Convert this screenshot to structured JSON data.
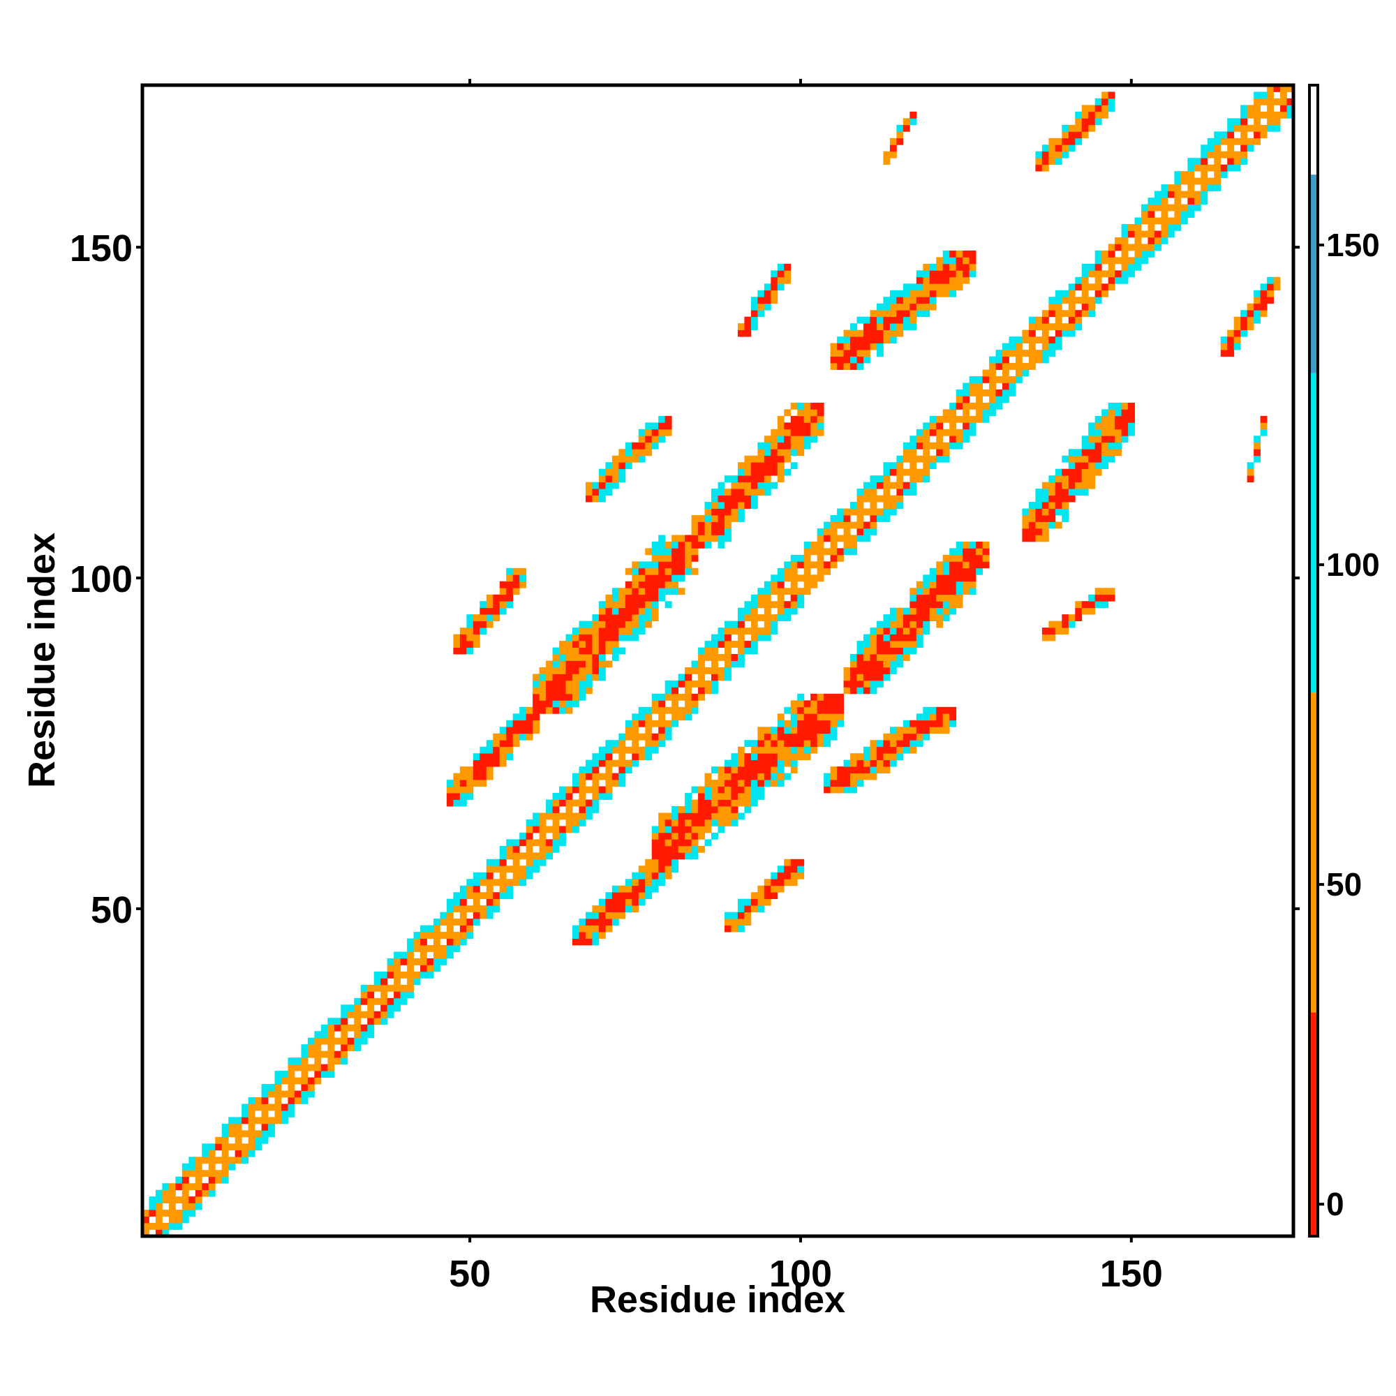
{
  "chart_data": {
    "type": "heatmap",
    "title": "",
    "xlabel": "Residue index",
    "ylabel": "Residue index",
    "xlim": [
      1,
      174
    ],
    "ylim": [
      1,
      174
    ],
    "x_ticks": [
      50,
      100,
      150
    ],
    "y_ticks": [
      50,
      100,
      150
    ],
    "grid": false,
    "colorbar": {
      "position": "right",
      "range": [
        -5,
        175
      ],
      "ticks": [
        0,
        50,
        100,
        150
      ],
      "bands": [
        {
          "from": -5,
          "to": 30,
          "color": "#ff1e00"
        },
        {
          "from": 30,
          "to": 80,
          "color": "#ff9900"
        },
        {
          "from": 80,
          "to": 161,
          "color": "#00e5ee"
        },
        {
          "from": 161,
          "to": 175,
          "color": "#ffffff"
        }
      ]
    },
    "colors": {
      "red": "#ff1a00",
      "orange": "#ff9900",
      "cyan": "#00e5ee",
      "steel": "#4a8fc0",
      "axis": "#000000"
    },
    "cells_note": "",
    "diagonal_band": {
      "from": 1,
      "to": 174,
      "halfwidth": 4
    },
    "contact_regions": [
      {
        "x": [
          66,
          81
        ],
        "y": [
          45,
          58
        ],
        "color": "red"
      },
      {
        "x": [
          89,
          100
        ],
        "y": [
          47,
          57
        ],
        "color": "red"
      },
      {
        "x": [
          78,
          106
        ],
        "y": [
          58,
          82
        ],
        "color": "red"
      },
      {
        "x": [
          104,
          123
        ],
        "y": [
          68,
          80
        ],
        "color": "red"
      },
      {
        "x": [
          107,
          128
        ],
        "y": [
          83,
          105
        ],
        "color": "red"
      },
      {
        "x": [
          137,
          147
        ],
        "y": [
          91,
          98
        ],
        "color": "red"
      },
      {
        "x": [
          134,
          150
        ],
        "y": [
          106,
          126
        ],
        "color": "red"
      },
      {
        "x": [
          47,
          60
        ],
        "y": [
          66,
          80
        ],
        "color": "red"
      },
      {
        "x": [
          60,
          84
        ],
        "y": [
          80,
          106
        ],
        "color": "red"
      },
      {
        "x": [
          48,
          58
        ],
        "y": [
          89,
          101
        ],
        "color": "red"
      },
      {
        "x": [
          84,
          103
        ],
        "y": [
          105,
          126
        ],
        "color": "red"
      },
      {
        "x": [
          68,
          80
        ],
        "y": [
          112,
          124
        ],
        "color": "red"
      },
      {
        "x": [
          105,
          126
        ],
        "y": [
          132,
          149
        ],
        "color": "red"
      },
      {
        "x": [
          91,
          98
        ],
        "y": [
          137,
          147
        ],
        "color": "red"
      },
      {
        "x": [
          164,
          172
        ],
        "y": [
          134,
          145
        ],
        "color": "red"
      },
      {
        "x": [
          168,
          170
        ],
        "y": [
          115,
          124
        ],
        "color": "red"
      },
      {
        "x": [
          136,
          147
        ],
        "y": [
          162,
          173
        ],
        "color": "red"
      },
      {
        "x": [
          113,
          117
        ],
        "y": [
          163,
          170
        ],
        "color": "red"
      }
    ]
  }
}
